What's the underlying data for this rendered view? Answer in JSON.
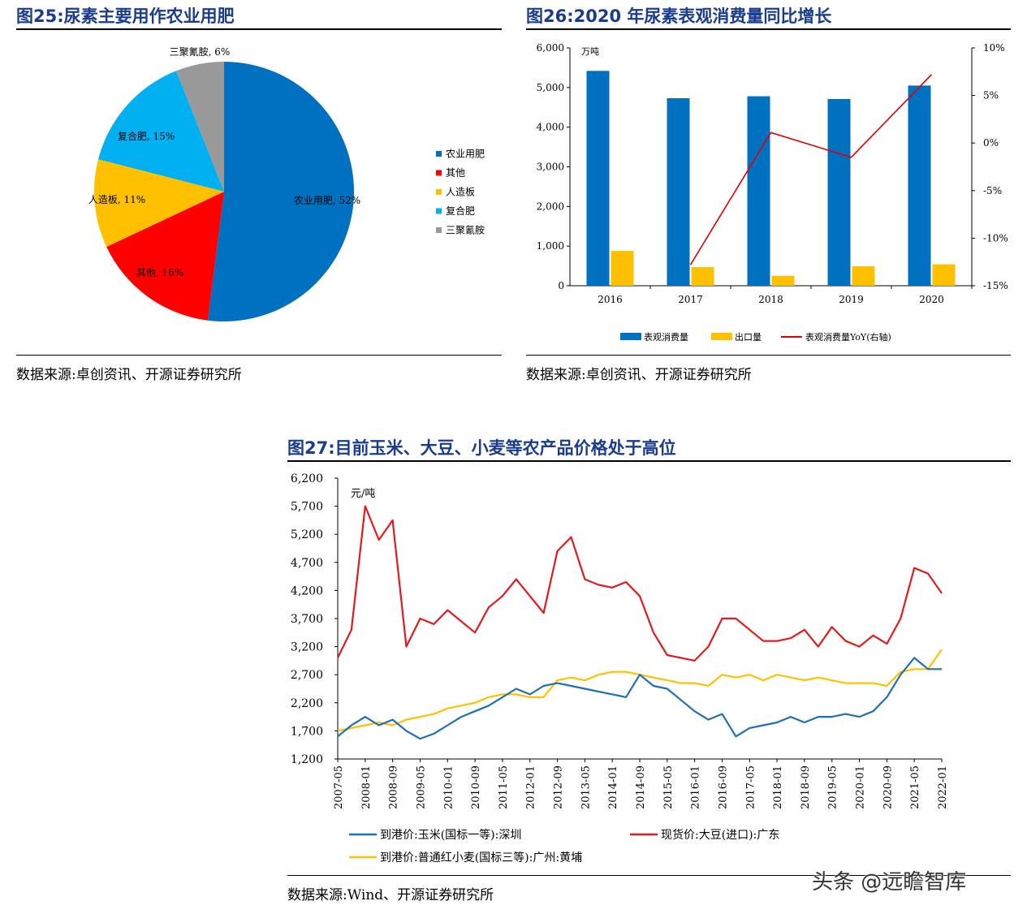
{
  "fig25": {
    "title": "图25:尿素主要用作农业用肥",
    "source": "数据来源:卓创资讯、开源证券研究所"
  },
  "fig26": {
    "title": "图26:2020 年尿素表观消费量同比增长",
    "source": "数据来源:卓创资讯、开源证券研究所"
  },
  "fig27": {
    "title": "图27:目前玉米、大豆、小麦等农产品价格处于高位",
    "source": "数据来源:Wind、开源证券研究所"
  },
  "watermark": "头条 @远瞻智库",
  "chart_data": [
    {
      "type": "pie",
      "legend_position": "right",
      "slices": [
        {
          "name": "农业用肥",
          "value": 52,
          "label": "农业用肥, 52%",
          "color": "#0070C0"
        },
        {
          "name": "其他",
          "value": 16,
          "label": "其他, 16%",
          "color": "#FF0000"
        },
        {
          "name": "人造板",
          "value": 11,
          "label": "人造板, 11%",
          "color": "#FFC000"
        },
        {
          "name": "复合肥",
          "value": 15,
          "label": "复合肥, 15%",
          "color": "#00B0F0"
        },
        {
          "name": "三聚氰胺",
          "value": 6,
          "label": "三聚氰胺, 6%",
          "color": "#999999"
        }
      ]
    },
    {
      "type": "bar",
      "categories": [
        "2016",
        "2017",
        "2018",
        "2019",
        "2020"
      ],
      "unit_label": "万吨",
      "ylim": [
        0,
        6000
      ],
      "yticks": [
        "0",
        "1,000",
        "2,000",
        "3,000",
        "4,000",
        "5,000",
        "6,000"
      ],
      "y2lim": [
        -15,
        10
      ],
      "y2ticks": [
        "-15%",
        "-10%",
        "-5%",
        "0%",
        "5%",
        "10%"
      ],
      "legend_position": "bottom",
      "series": [
        {
          "name": "表观消费量",
          "type": "bar",
          "color": "#0070C0",
          "values": [
            5420,
            4730,
            4780,
            4710,
            5050
          ]
        },
        {
          "name": "出口量",
          "type": "bar",
          "color": "#FFC000",
          "values": [
            880,
            470,
            250,
            490,
            540
          ]
        },
        {
          "name": "表观消费量YoY(右轴)",
          "type": "line",
          "axis": "right",
          "color": "#E00000",
          "values": [
            null,
            -12.8,
            1.1,
            -1.5,
            7.2
          ]
        }
      ]
    },
    {
      "type": "line",
      "unit_label": "元/吨",
      "ylim": [
        1200,
        6200
      ],
      "yticks": [
        "1,200",
        "1,700",
        "2,200",
        "2,700",
        "3,200",
        "3,700",
        "4,200",
        "4,700",
        "5,200",
        "5,700",
        "6,200"
      ],
      "xticks": [
        "2007-05",
        "2008-01",
        "2008-09",
        "2009-05",
        "2010-01",
        "2010-09",
        "2011-05",
        "2012-01",
        "2012-09",
        "2013-05",
        "2014-01",
        "2014-09",
        "2015-05",
        "2016-01",
        "2016-09",
        "2017-05",
        "2018-01",
        "2018-09",
        "2019-05",
        "2020-01",
        "2020-09",
        "2021-05",
        "2022-01"
      ],
      "legend_position": "bottom",
      "series": [
        {
          "name": "到港价:玉米(国标一等):深圳",
          "color": "#1F6FB5",
          "x": [
            "2007-05",
            "2007-09",
            "2008-01",
            "2008-05",
            "2008-09",
            "2009-01",
            "2009-05",
            "2009-09",
            "2010-01",
            "2010-05",
            "2010-09",
            "2011-01",
            "2011-05",
            "2011-09",
            "2012-01",
            "2012-05",
            "2012-09",
            "2013-01",
            "2013-05",
            "2013-09",
            "2014-01",
            "2014-05",
            "2014-09",
            "2015-01",
            "2015-05",
            "2015-09",
            "2016-01",
            "2016-05",
            "2016-09",
            "2017-01",
            "2017-05",
            "2017-09",
            "2018-01",
            "2018-05",
            "2018-09",
            "2019-01",
            "2019-05",
            "2019-09",
            "2020-01",
            "2020-05",
            "2020-09",
            "2021-01",
            "2021-05",
            "2021-09",
            "2022-01"
          ],
          "values": [
            1600,
            1800,
            1950,
            1800,
            1900,
            1700,
            1560,
            1650,
            1800,
            1950,
            2050,
            2150,
            2300,
            2450,
            2350,
            2500,
            2550,
            2500,
            2450,
            2400,
            2350,
            2300,
            2700,
            2500,
            2450,
            2250,
            2050,
            1900,
            2000,
            1600,
            1750,
            1800,
            1850,
            1950,
            1850,
            1950,
            1950,
            2000,
            1950,
            2050,
            2300,
            2700,
            3000,
            2800,
            2800
          ]
        },
        {
          "name": "现货价:大豆(进口):广东",
          "color": "#E31A1C",
          "x": [
            "2007-05",
            "2007-09",
            "2008-01",
            "2008-05",
            "2008-09",
            "2009-01",
            "2009-05",
            "2009-09",
            "2010-01",
            "2010-05",
            "2010-09",
            "2011-01",
            "2011-05",
            "2011-09",
            "2012-01",
            "2012-05",
            "2012-09",
            "2013-01",
            "2013-05",
            "2013-09",
            "2014-01",
            "2014-05",
            "2014-09",
            "2015-01",
            "2015-05",
            "2015-09",
            "2016-01",
            "2016-05",
            "2016-09",
            "2017-01",
            "2017-05",
            "2017-09",
            "2018-01",
            "2018-05",
            "2018-09",
            "2019-01",
            "2019-05",
            "2019-09",
            "2020-01",
            "2020-05",
            "2020-09",
            "2021-01",
            "2021-05",
            "2021-09",
            "2022-01"
          ],
          "values": [
            3000,
            3500,
            5700,
            5100,
            5450,
            3200,
            3700,
            3600,
            3850,
            3650,
            3450,
            3900,
            4100,
            4400,
            4100,
            3800,
            4900,
            5150,
            4400,
            4300,
            4250,
            4350,
            4100,
            3450,
            3050,
            3000,
            2950,
            3200,
            3700,
            3700,
            3500,
            3300,
            3300,
            3350,
            3500,
            3200,
            3550,
            3300,
            3200,
            3400,
            3250,
            3700,
            4600,
            4500,
            4150
          ]
        },
        {
          "name": "到港价:普通红小麦(国标三等):广州:黄埔",
          "color": "#FFC000",
          "x": [
            "2007-05",
            "2007-09",
            "2008-01",
            "2008-05",
            "2008-09",
            "2009-01",
            "2009-05",
            "2009-09",
            "2010-01",
            "2010-05",
            "2010-09",
            "2011-01",
            "2011-05",
            "2011-09",
            "2012-01",
            "2012-05",
            "2012-09",
            "2013-01",
            "2013-05",
            "2013-09",
            "2014-01",
            "2014-05",
            "2014-09",
            "2015-01",
            "2015-05",
            "2015-09",
            "2016-01",
            "2016-05",
            "2016-09",
            "2017-01",
            "2017-05",
            "2017-09",
            "2018-01",
            "2018-05",
            "2018-09",
            "2019-01",
            "2019-05",
            "2019-09",
            "2020-01",
            "2020-05",
            "2020-09",
            "2021-01",
            "2021-05",
            "2021-09",
            "2022-01"
          ],
          "values": [
            1700,
            1750,
            1800,
            1850,
            1800,
            1900,
            1950,
            2000,
            2100,
            2150,
            2200,
            2300,
            2350,
            2350,
            2300,
            2300,
            2600,
            2650,
            2600,
            2700,
            2750,
            2750,
            2700,
            2650,
            2600,
            2550,
            2550,
            2500,
            2700,
            2650,
            2700,
            2600,
            2700,
            2650,
            2600,
            2650,
            2600,
            2550,
            2550,
            2550,
            2500,
            2750,
            2800,
            2800,
            3150
          ]
        }
      ]
    }
  ]
}
